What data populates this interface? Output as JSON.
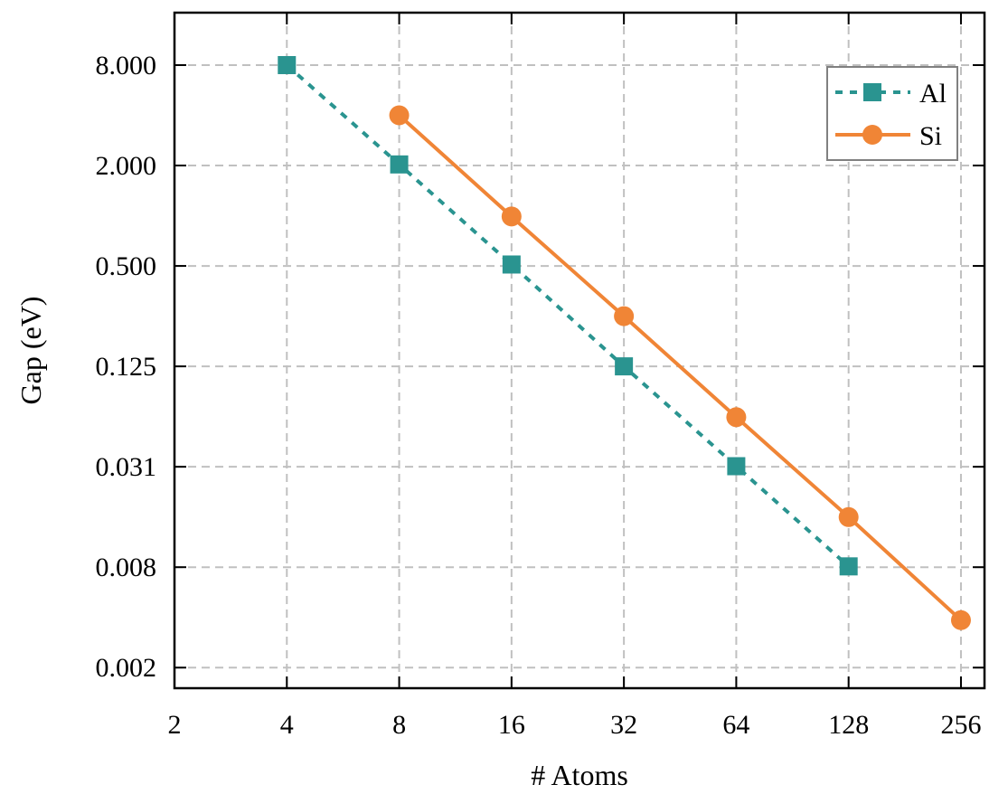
{
  "chart_data": {
    "type": "line",
    "xlabel": "# Atoms",
    "ylabel": "Gap (eV)",
    "x_scale": "log2",
    "y_scale": "log2",
    "xlim": [
      2,
      296
    ],
    "ylim": [
      0.00147,
      16.5
    ],
    "x_ticks": [
      2,
      4,
      8,
      16,
      32,
      64,
      128,
      256
    ],
    "x_tick_labels": [
      "2",
      "4",
      "8",
      "16",
      "32",
      "64",
      "128",
      "256"
    ],
    "y_ticks": [
      0.001953125,
      0.0078125,
      0.03125,
      0.125,
      0.5,
      2,
      8
    ],
    "y_tick_labels": [
      "0.002",
      "0.008",
      "0.031",
      "0.125",
      "0.500",
      "2.000",
      "8.000"
    ],
    "grid": true,
    "legend_position": "top-right",
    "series": [
      {
        "name": "Al",
        "color": "#2a9490",
        "line_style": "dashed",
        "marker": "square",
        "x": [
          4,
          8,
          16,
          32,
          64,
          128
        ],
        "y": [
          8.0,
          2.03,
          0.51,
          0.125,
          0.0315,
          0.0079
        ]
      },
      {
        "name": "Si",
        "color": "#f08536",
        "line_style": "solid",
        "marker": "circle",
        "x": [
          8,
          16,
          32,
          64,
          128,
          256
        ],
        "y": [
          4.0,
          0.99,
          0.25,
          0.062,
          0.0156,
          0.00376
        ]
      }
    ]
  }
}
